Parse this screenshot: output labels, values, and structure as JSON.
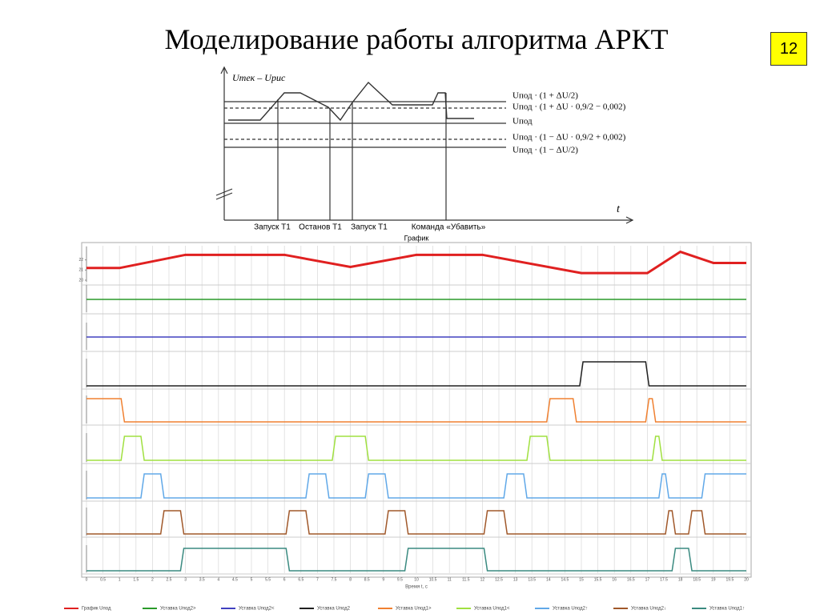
{
  "title": "Моделирование работы алгоритма АРКТ",
  "slide_number": "12",
  "diagram": {
    "y_label": "Uтек – Uрис",
    "x_label": "t",
    "levels": [
      "Uпод · (1 + ΔU/2)",
      "Uпод · (1 + ΔU · 0,9/2 − 0,002)",
      "Uпод",
      "Uпод · (1 − ΔU · 0,9/2 + 0,002)",
      "Uпод · (1 − ΔU/2)"
    ],
    "events": [
      "Запуск Т1",
      "Останов Т1",
      "Запуск Т1",
      "Команда «Убавить»"
    ]
  },
  "chart_data": {
    "type": "line",
    "title": "График",
    "x_label": "Время t, с",
    "xlim": [
      0,
      20
    ],
    "xticks": [
      0,
      0.5,
      1,
      1.5,
      2,
      2.5,
      3,
      3.5,
      4,
      4.5,
      5,
      5.5,
      6,
      6.5,
      7,
      7.5,
      8,
      8.5,
      9,
      9.5,
      10,
      10.5,
      11,
      11.5,
      12,
      12.5,
      13,
      13.5,
      14,
      14.5,
      15,
      15.5,
      16,
      16.5,
      17,
      17.5,
      18,
      18.5,
      19,
      19.5,
      20
    ],
    "grid": true,
    "series": [
      {
        "name": "График Uпод",
        "color": "#e02020",
        "ylim": [
          20,
          23
        ],
        "yticks": [
          20,
          21,
          22
        ],
        "x": [
          0,
          1,
          3,
          6,
          8,
          10,
          12,
          15,
          17,
          18,
          19,
          20
        ],
        "values": [
          21.2,
          21.2,
          22.5,
          22.5,
          21.3,
          22.5,
          22.5,
          20.7,
          20.7,
          22.8,
          21.7,
          21.7
        ]
      },
      {
        "name": "Уставка Uпод2>",
        "color": "#2a9a2a",
        "ylim": [
          0,
          2
        ],
        "x": [
          0,
          20
        ],
        "values": [
          1,
          1
        ]
      },
      {
        "name": "Уставка Uпод2<",
        "color": "#4040c0",
        "ylim": [
          0,
          2
        ],
        "x": [
          0,
          20
        ],
        "values": [
          1,
          1
        ]
      },
      {
        "name": "Уставка Uпод2",
        "color": "#202020",
        "ylim": [
          0,
          1
        ],
        "x": [
          0,
          14.95,
          15.05,
          16.95,
          17.05,
          20
        ],
        "values": [
          0,
          0,
          1,
          1,
          0,
          0
        ]
      },
      {
        "name": "Уставка Uпод1>",
        "color": "#f08030",
        "ylim": [
          0,
          1
        ],
        "x": [
          0,
          1.05,
          1.15,
          13.95,
          14.05,
          14.75,
          14.85,
          16.95,
          17.05,
          17.15,
          17.25,
          20
        ],
        "values": [
          1,
          1,
          0,
          0,
          1,
          1,
          0,
          0,
          1,
          1,
          0,
          0
        ]
      },
      {
        "name": "Уставка Uпод1<",
        "color": "#a0e040",
        "ylim": [
          0,
          1
        ],
        "x": [
          0,
          1.05,
          1.15,
          1.65,
          1.75,
          7.45,
          7.55,
          8.45,
          8.55,
          13.35,
          13.45,
          13.95,
          14.05,
          17.15,
          17.25,
          17.35,
          17.45,
          20
        ],
        "values": [
          0,
          0,
          1,
          1,
          0,
          0,
          1,
          1,
          0,
          0,
          1,
          1,
          0,
          0,
          1,
          1,
          0,
          0
        ]
      },
      {
        "name": "Уставка Uпод2↑",
        "color": "#60a8e8",
        "ylim": [
          0,
          1
        ],
        "x": [
          0,
          1.65,
          1.75,
          2.25,
          2.35,
          6.65,
          6.75,
          7.25,
          7.35,
          8.45,
          8.55,
          9.05,
          9.15,
          12.65,
          12.75,
          13.25,
          13.35,
          17.35,
          17.45,
          17.55,
          17.65,
          18.65,
          18.75,
          20
        ],
        "values": [
          0,
          0,
          1,
          1,
          0,
          0,
          1,
          1,
          0,
          0,
          1,
          1,
          0,
          0,
          1,
          1,
          0,
          0,
          1,
          1,
          0,
          0,
          1,
          1
        ]
      },
      {
        "name": "Уставка Uпод2↓",
        "color": "#a0582a",
        "ylim": [
          0,
          1
        ],
        "x": [
          0,
          2.25,
          2.35,
          2.85,
          2.95,
          6.05,
          6.15,
          6.65,
          6.75,
          9.05,
          9.15,
          9.65,
          9.75,
          12.05,
          12.15,
          12.65,
          12.75,
          17.55,
          17.65,
          17.75,
          17.85,
          18.25,
          18.35,
          18.65,
          18.75,
          20
        ],
        "values": [
          0,
          0,
          1,
          1,
          0,
          0,
          1,
          1,
          0,
          0,
          1,
          1,
          0,
          0,
          1,
          1,
          0,
          0,
          1,
          1,
          0,
          0,
          1,
          1,
          0,
          0
        ]
      },
      {
        "name": "Уставка Uпод1↑",
        "color": "#3a8a80",
        "ylim": [
          0,
          1
        ],
        "x": [
          0,
          2.85,
          2.95,
          6.05,
          6.15,
          9.65,
          9.75,
          12.05,
          12.15,
          17.75,
          17.85,
          18.25,
          18.35,
          20
        ],
        "values": [
          0,
          0,
          1,
          1,
          0,
          0,
          1,
          1,
          0,
          0,
          1,
          1,
          0,
          0
        ]
      }
    ]
  }
}
